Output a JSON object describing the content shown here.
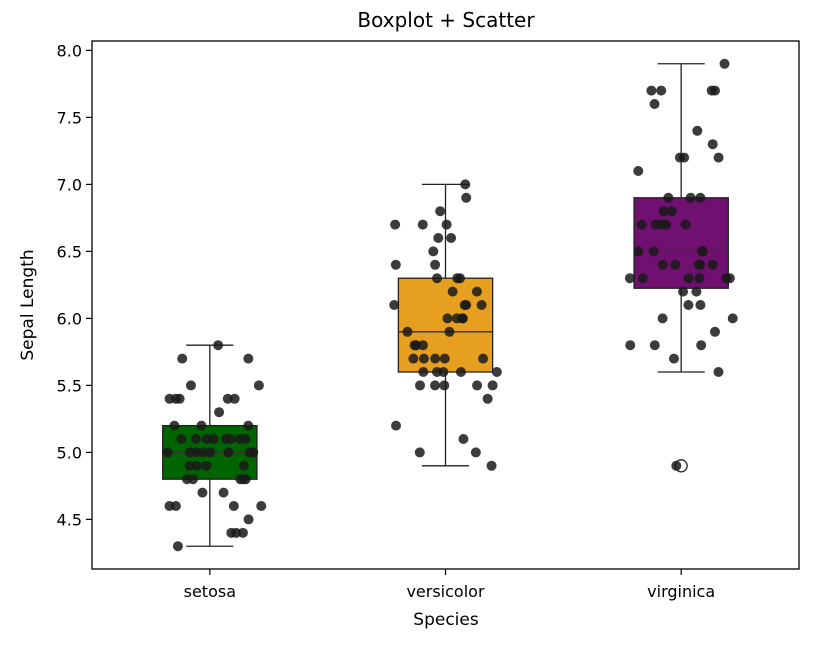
{
  "chart_data": {
    "type": "box",
    "title": "Boxplot + Scatter",
    "xlabel": "Species",
    "ylabel": "Sepal Length",
    "ylim": [
      4.13,
      8.07
    ],
    "yticks": [
      "4.5",
      "5.0",
      "5.5",
      "6.0",
      "6.5",
      "7.0",
      "7.5",
      "8.0"
    ],
    "categories": [
      "setosa",
      "versicolor",
      "virginica"
    ],
    "grid": false,
    "boxes": [
      {
        "category": "setosa",
        "color": "#006400",
        "whisker_low": 4.3,
        "q1": 4.8,
        "median": 5.0,
        "q3": 5.2,
        "whisker_high": 5.8,
        "outliers": []
      },
      {
        "category": "versicolor",
        "color": "#E69F1E",
        "whisker_low": 4.9,
        "q1": 5.6,
        "median": 5.9,
        "q3": 6.3,
        "whisker_high": 7.0,
        "outliers": []
      },
      {
        "category": "virginica",
        "color": "#701070",
        "whisker_low": 5.6,
        "q1": 6.225,
        "median": 6.5,
        "q3": 6.9,
        "whisker_high": 7.9,
        "outliers": [
          4.9
        ]
      }
    ],
    "points": [
      {
        "category": "setosa",
        "values": [
          5.1,
          4.9,
          4.7,
          4.6,
          5.0,
          5.4,
          4.6,
          5.0,
          4.4,
          4.9,
          5.4,
          4.8,
          4.8,
          4.3,
          5.8,
          5.7,
          5.4,
          5.1,
          5.7,
          5.1,
          5.4,
          5.1,
          4.6,
          5.1,
          4.8,
          5.0,
          5.0,
          5.2,
          5.2,
          4.7,
          4.8,
          5.4,
          5.2,
          5.5,
          4.9,
          5.0,
          5.5,
          4.9,
          4.4,
          5.1,
          5.0,
          4.5,
          4.4,
          5.0,
          5.1,
          4.8,
          5.1,
          4.6,
          5.3,
          5.0
        ]
      },
      {
        "category": "versicolor",
        "values": [
          7.0,
          6.4,
          6.9,
          5.5,
          6.5,
          5.7,
          6.3,
          4.9,
          6.6,
          5.2,
          5.0,
          5.9,
          6.0,
          6.1,
          5.6,
          6.7,
          5.6,
          5.8,
          6.2,
          5.6,
          5.9,
          6.1,
          6.3,
          6.1,
          6.4,
          6.6,
          6.8,
          6.7,
          6.0,
          5.7,
          5.5,
          5.5,
          5.8,
          6.0,
          5.4,
          6.0,
          6.7,
          6.3,
          5.6,
          5.5,
          5.5,
          6.1,
          5.8,
          5.0,
          5.6,
          5.7,
          5.7,
          6.2,
          5.1,
          5.7
        ]
      },
      {
        "category": "virginica",
        "values": [
          6.3,
          5.8,
          7.1,
          6.3,
          6.5,
          7.6,
          4.9,
          7.3,
          6.7,
          7.2,
          6.5,
          6.4,
          6.8,
          5.7,
          5.8,
          6.4,
          6.5,
          7.7,
          7.7,
          6.0,
          6.9,
          5.6,
          7.7,
          6.3,
          6.7,
          7.2,
          6.2,
          6.1,
          6.4,
          7.2,
          7.4,
          7.9,
          6.4,
          6.3,
          6.1,
          7.7,
          6.3,
          6.4,
          6.0,
          6.9,
          6.7,
          6.9,
          5.8,
          6.8,
          6.7,
          6.7,
          6.3,
          6.5,
          6.2,
          5.9
        ]
      }
    ],
    "scatter_color": "#1a1a1a"
  }
}
